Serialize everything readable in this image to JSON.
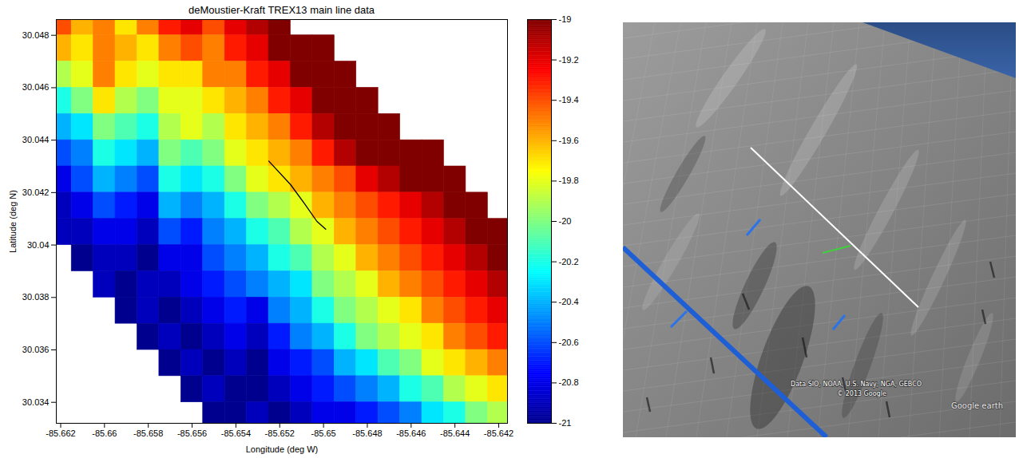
{
  "chart_data": {
    "type": "heatmap",
    "title": "deMoustier-Kraft TREX13 main line data",
    "x_label": "Longitude (deg W)",
    "y_label": "Latitude (deg N)",
    "xlim": [
      -85.6622,
      -85.6416
    ],
    "ylim": [
      30.0332,
      30.0486
    ],
    "xticks": [
      -85.662,
      -85.66,
      -85.658,
      -85.656,
      -85.654,
      -85.652,
      -85.65,
      -85.648,
      -85.646,
      -85.644,
      -85.642
    ],
    "yticks": [
      30.034,
      30.036,
      30.038,
      30.04,
      30.042,
      30.044,
      30.046,
      30.048
    ],
    "x": [
      -85.662,
      -85.661,
      -85.66,
      -85.659,
      -85.658,
      -85.657,
      -85.656,
      -85.655,
      -85.654,
      -85.653,
      -85.652,
      -85.651,
      -85.65,
      -85.649,
      -85.648,
      -85.647,
      -85.646,
      -85.645,
      -85.644,
      -85.643,
      -85.642
    ],
    "y": [
      30.0485,
      30.0475,
      30.0465,
      30.0455,
      30.0445,
      30.0435,
      30.0425,
      30.0415,
      30.0405,
      30.0395,
      30.0385,
      30.0375,
      30.0365,
      30.0355,
      30.0345,
      30.0335
    ],
    "values": [
      [
        -19.4,
        -19.6,
        -19.5,
        -19.7,
        -19.5,
        -19.3,
        -19.2,
        -19.4,
        -19.2,
        -19.1,
        -19.0,
        null,
        null,
        null,
        null,
        null,
        null,
        null,
        null,
        null,
        null
      ],
      [
        -19.6,
        -19.7,
        -19.5,
        -19.6,
        -19.7,
        -19.5,
        -19.4,
        -19.5,
        -19.3,
        -19.2,
        -19.0,
        -19.0,
        -19.0,
        null,
        null,
        null,
        null,
        null,
        null,
        null,
        null
      ],
      [
        -19.9,
        -19.8,
        -19.5,
        -19.7,
        -19.8,
        -19.7,
        -19.7,
        -19.5,
        -19.5,
        -19.3,
        -19.2,
        -19.0,
        -19.0,
        -19.0,
        null,
        null,
        null,
        null,
        null,
        null,
        null
      ],
      [
        -20.2,
        -20.0,
        -19.7,
        -19.9,
        -20.0,
        -19.8,
        -19.8,
        -19.7,
        -19.6,
        -19.5,
        -19.3,
        -19.2,
        -19.0,
        -19.0,
        -19.0,
        null,
        null,
        null,
        null,
        null,
        null
      ],
      [
        -20.4,
        -20.3,
        -20.0,
        -20.1,
        -20.2,
        -19.9,
        -19.8,
        -19.9,
        -19.7,
        -19.6,
        -19.5,
        -19.3,
        -19.1,
        -19.0,
        -19.0,
        -19.0,
        null,
        null,
        null,
        null,
        null
      ],
      [
        -20.6,
        -20.5,
        -20.2,
        -20.3,
        -20.4,
        -20.0,
        -20.1,
        -20.0,
        -19.8,
        -19.7,
        -19.6,
        -19.5,
        -19.3,
        -19.1,
        -19.0,
        -19.0,
        -19.0,
        -19.0,
        null,
        null,
        null
      ],
      [
        -20.8,
        -20.6,
        -20.4,
        -20.5,
        -20.6,
        -20.2,
        -20.3,
        -20.2,
        -20.0,
        -19.8,
        -19.7,
        -19.6,
        -19.5,
        -19.4,
        -19.2,
        -19.1,
        -19.0,
        -19.0,
        -19.0,
        null,
        null
      ],
      [
        -20.9,
        -20.8,
        -20.6,
        -20.7,
        -20.8,
        -20.4,
        -20.5,
        -20.4,
        -20.2,
        -20.0,
        -19.9,
        -19.8,
        -19.6,
        -19.5,
        -19.4,
        -19.3,
        -19.2,
        -19.1,
        -19.0,
        -19.0,
        null
      ],
      [
        -20.9,
        -20.9,
        -20.8,
        -20.8,
        -20.9,
        -20.6,
        -20.7,
        -20.5,
        -20.4,
        -20.2,
        -20.1,
        -19.9,
        -19.8,
        -19.6,
        -19.5,
        -19.4,
        -19.3,
        -19.2,
        -19.1,
        -19.0,
        -19.0
      ],
      [
        null,
        -21.0,
        -20.9,
        -20.9,
        -21.0,
        -20.8,
        -20.8,
        -20.6,
        -20.5,
        -20.4,
        -20.2,
        -20.1,
        -19.9,
        -19.8,
        -19.6,
        -19.5,
        -19.4,
        -19.3,
        -19.2,
        -19.1,
        -19.0
      ],
      [
        null,
        null,
        -20.9,
        -21.0,
        -20.9,
        -20.9,
        -20.8,
        -20.7,
        -20.6,
        -20.5,
        -20.4,
        -20.3,
        -20.0,
        -19.9,
        -19.8,
        -19.6,
        -19.5,
        -19.4,
        -19.3,
        -19.2,
        -19.1
      ],
      [
        null,
        null,
        null,
        -21.0,
        -20.9,
        -21.0,
        -20.9,
        -20.8,
        -20.7,
        -20.8,
        -20.5,
        -20.4,
        -20.2,
        -20.0,
        -19.9,
        -19.8,
        -19.7,
        -19.5,
        -19.4,
        -19.3,
        -19.2
      ],
      [
        null,
        null,
        null,
        null,
        -21.0,
        -20.9,
        -21.0,
        -20.9,
        -20.8,
        -20.9,
        -20.7,
        -20.5,
        -20.4,
        -20.2,
        -20.0,
        -19.9,
        -19.8,
        -19.7,
        -19.5,
        -19.4,
        -19.3
      ],
      [
        null,
        null,
        null,
        null,
        null,
        -21.0,
        -20.9,
        -21.0,
        -20.9,
        -21.0,
        -20.8,
        -20.7,
        -20.6,
        -20.4,
        -20.3,
        -20.1,
        -20.0,
        -19.8,
        -19.7,
        -19.6,
        -19.5
      ],
      [
        null,
        null,
        null,
        null,
        null,
        null,
        -21.0,
        -20.9,
        -21.0,
        -21.0,
        -20.9,
        -20.8,
        -20.7,
        -20.6,
        -20.5,
        -20.4,
        -20.2,
        -20.1,
        -19.9,
        -19.8,
        -19.7
      ],
      [
        null,
        null,
        null,
        null,
        null,
        null,
        null,
        -21.0,
        -21.0,
        -20.9,
        -21.0,
        -20.9,
        -20.8,
        -20.8,
        -20.7,
        -20.6,
        -20.5,
        -20.3,
        -20.2,
        -20.0,
        -19.9
      ]
    ],
    "colorbar": {
      "lim": [
        -21,
        -19
      ],
      "ticks": [
        -21,
        -20.8,
        -20.6,
        -20.4,
        -20.2,
        -20,
        -19.8,
        -19.6,
        -19.4,
        -19.2,
        -19
      ]
    },
    "line": {
      "color": "#000000",
      "x": [
        -85.6525,
        -85.6515,
        -85.6508,
        -85.6503,
        -85.6499
      ],
      "y": [
        30.0432,
        30.0423,
        30.0415,
        30.0409,
        30.0406
      ]
    }
  },
  "screenshot": {
    "attribution": "Data SIO, NOAA, U.S. Navy, NGA, GEBCO",
    "copyright": "© 2013 Google",
    "logo": "Google earth"
  }
}
